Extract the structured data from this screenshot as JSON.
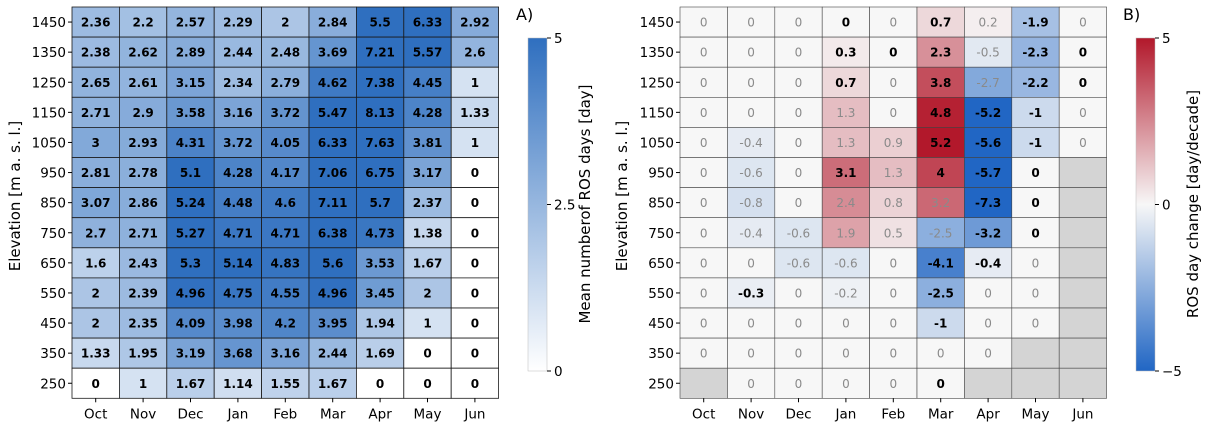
{
  "chart_data": [
    {
      "type": "heatmap",
      "panel_label": "A)",
      "ylabel": "Elevation [m a. s. l.]",
      "colorbar_label": "Mean numberof ROS days [day]",
      "colorbar_ticks": [
        "5",
        "2.5",
        "0"
      ],
      "colorbar_range": [
        0,
        5
      ],
      "colormap": {
        "low": "#ffffff",
        "high": "#2f6fbf"
      },
      "months": [
        "Oct",
        "Nov",
        "Dec",
        "Jan",
        "Feb",
        "Mar",
        "Apr",
        "May",
        "Jun"
      ],
      "elevations": [
        "1450",
        "1350",
        "1250",
        "1150",
        "1050",
        "950",
        "850",
        "750",
        "650",
        "550",
        "450",
        "350",
        "250"
      ],
      "values": [
        [
          "2.36",
          "2.2",
          "2.57",
          "2.29",
          "2",
          "2.84",
          "5.5",
          "6.33",
          "2.92"
        ],
        [
          "2.38",
          "2.62",
          "2.89",
          "2.44",
          "2.48",
          "3.69",
          "7.21",
          "5.57",
          "2.6"
        ],
        [
          "2.65",
          "2.61",
          "3.15",
          "2.34",
          "2.79",
          "4.62",
          "7.38",
          "4.45",
          "1"
        ],
        [
          "2.71",
          "2.9",
          "3.58",
          "3.16",
          "3.72",
          "5.47",
          "8.13",
          "4.28",
          "1.33"
        ],
        [
          "3",
          "2.93",
          "4.31",
          "3.72",
          "4.05",
          "6.33",
          "7.63",
          "3.81",
          "1"
        ],
        [
          "2.81",
          "2.78",
          "5.1",
          "4.28",
          "4.17",
          "7.06",
          "6.75",
          "3.17",
          "0"
        ],
        [
          "3.07",
          "2.86",
          "5.24",
          "4.48",
          "4.6",
          "7.11",
          "5.7",
          "2.37",
          "0"
        ],
        [
          "2.7",
          "2.71",
          "5.27",
          "4.71",
          "4.71",
          "6.38",
          "4.73",
          "1.38",
          "0"
        ],
        [
          "1.6",
          "2.43",
          "5.3",
          "5.14",
          "4.83",
          "5.6",
          "3.53",
          "1.67",
          "0"
        ],
        [
          "2",
          "2.39",
          "4.96",
          "4.75",
          "4.55",
          "4.96",
          "3.45",
          "2",
          "0"
        ],
        [
          "2",
          "2.35",
          "4.09",
          "3.98",
          "4.2",
          "3.95",
          "1.94",
          "1",
          "0"
        ],
        [
          "1.33",
          "1.95",
          "3.19",
          "3.68",
          "3.16",
          "2.44",
          "1.69",
          "0",
          "0"
        ],
        [
          "0",
          "1",
          "1.67",
          "1.14",
          "1.55",
          "1.67",
          "0",
          "0",
          "0"
        ]
      ]
    },
    {
      "type": "heatmap",
      "panel_label": "B)",
      "ylabel": "Elevation [m a. s. l.]",
      "colorbar_label": "ROS day change [day/decade]",
      "colorbar_ticks": [
        "5",
        "0",
        "−5"
      ],
      "colorbar_range": [
        -5,
        5
      ],
      "colormap": {
        "low": "#2166c4",
        "mid": "#ffffff",
        "high": "#b2182b"
      },
      "missing_color": "#d4d4d4",
      "months": [
        "Oct",
        "Nov",
        "Dec",
        "Jan",
        "Feb",
        "Mar",
        "Apr",
        "May",
        "Jun"
      ],
      "elevations": [
        "1450",
        "1350",
        "1250",
        "1150",
        "1050",
        "950",
        "850",
        "750",
        "650",
        "550",
        "450",
        "350",
        "250"
      ],
      "values": [
        [
          "0",
          "0",
          "0",
          "0",
          "0",
          "0.7",
          "0.2",
          "-1.9",
          "0"
        ],
        [
          "0",
          "0",
          "0",
          "0.3",
          "0",
          "2.3",
          "-0.5",
          "-2.3",
          "0"
        ],
        [
          "0",
          "0",
          "0",
          "0.7",
          "0",
          "3.8",
          "-2.7",
          "-2.2",
          "0"
        ],
        [
          "0",
          "0",
          "0",
          "1.3",
          "0",
          "4.8",
          "-5.2",
          "-1",
          "0"
        ],
        [
          "0",
          "-0.4",
          "0",
          "1.3",
          "0.9",
          "5.2",
          "-5.6",
          "-1",
          "0"
        ],
        [
          "0",
          "-0.6",
          "0",
          "3.1",
          "1.3",
          "4",
          "-5.7",
          "0",
          null
        ],
        [
          "0",
          "-0.8",
          "0",
          "2.4",
          "0.8",
          "3.2",
          "-7.3",
          "0",
          null
        ],
        [
          "0",
          "-0.4",
          "-0.6",
          "1.9",
          "0.5",
          "-2.5",
          "-3.2",
          "0",
          null
        ],
        [
          "0",
          "0",
          "-0.6",
          "-0.6",
          "0",
          "-4.1",
          "-0.4",
          "0",
          null
        ],
        [
          "0",
          "-0.3",
          "0",
          "-0.2",
          "0",
          "-2.5",
          "0",
          "0",
          null
        ],
        [
          "0",
          "0",
          "0",
          "0",
          "0",
          "-1",
          "0",
          "0",
          null
        ],
        [
          "0",
          "0",
          "0",
          "0",
          "0",
          "0",
          "0",
          null,
          null
        ],
        [
          null,
          "0",
          "0",
          "0",
          "0",
          "0",
          null,
          null,
          null
        ]
      ],
      "bold": [
        [
          0,
          0,
          0,
          1,
          0,
          1,
          0,
          1,
          0
        ],
        [
          0,
          0,
          0,
          1,
          1,
          1,
          0,
          1,
          1
        ],
        [
          0,
          0,
          0,
          1,
          0,
          1,
          0,
          1,
          1
        ],
        [
          0,
          0,
          0,
          0,
          0,
          1,
          1,
          1,
          0
        ],
        [
          0,
          0,
          0,
          0,
          0,
          1,
          1,
          1,
          0
        ],
        [
          0,
          0,
          0,
          1,
          0,
          1,
          1,
          1,
          0
        ],
        [
          0,
          0,
          0,
          0,
          0,
          0,
          1,
          1,
          0
        ],
        [
          0,
          0,
          0,
          0,
          0,
          0,
          1,
          1,
          0
        ],
        [
          0,
          0,
          0,
          0,
          0,
          1,
          1,
          0,
          0
        ],
        [
          0,
          1,
          0,
          0,
          0,
          1,
          0,
          0,
          0
        ],
        [
          0,
          0,
          0,
          0,
          0,
          1,
          0,
          0,
          0
        ],
        [
          0,
          0,
          0,
          0,
          0,
          0,
          0,
          0,
          0
        ],
        [
          0,
          0,
          0,
          0,
          0,
          1,
          0,
          0,
          0
        ]
      ]
    }
  ]
}
